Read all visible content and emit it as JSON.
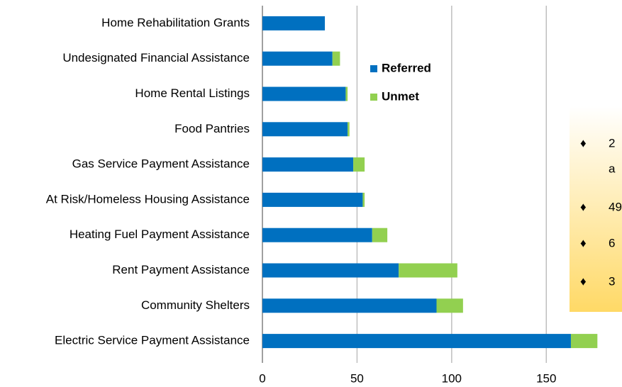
{
  "chart_data": {
    "type": "bar",
    "orientation": "horizontal",
    "stacked": true,
    "categories": [
      "Home Rehabilitation Grants",
      "Undesignated Financial Assistance",
      "Home Rental Listings",
      "Food Pantries",
      "Gas Service Payment Assistance",
      "At Risk/Homeless Housing Assistance",
      "Heating Fuel Payment Assistance",
      "Rent Payment Assistance",
      "Community Shelters",
      "Electric Service Payment Assistance"
    ],
    "series": [
      {
        "name": "Referred",
        "color": "#0070c0",
        "values": [
          33,
          37,
          44,
          45,
          48,
          53,
          58,
          72,
          92,
          163
        ]
      },
      {
        "name": "Unmet",
        "color": "#92d050",
        "values": [
          0,
          4,
          1,
          1,
          6,
          1,
          8,
          31,
          14,
          14
        ]
      }
    ],
    "xlim": [
      0,
      190
    ],
    "xticks": [
      0,
      50,
      100,
      150
    ],
    "grid": true,
    "legend": "top-center",
    "annotations": [
      "2",
      "a",
      "49",
      "6",
      "3"
    ]
  }
}
